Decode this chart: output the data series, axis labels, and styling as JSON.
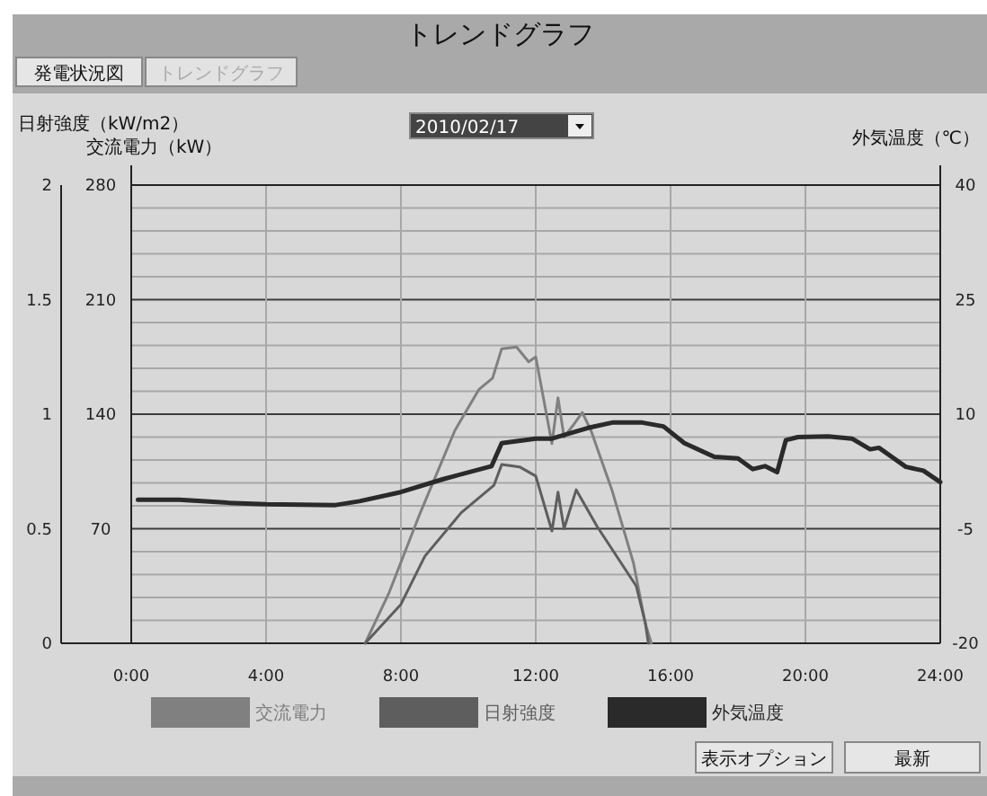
{
  "chart_data": {
    "type": "line",
    "title": "トレンドグラフ",
    "ylabel": "交流電力（kW）",
    "y2label": "外気温度（℃）",
    "y3label": "日射強度（kW/m2）",
    "xlim": [
      0,
      24
    ],
    "xticks": [
      {
        "value": 0,
        "label": "0:00"
      },
      {
        "value": 4,
        "label": "4:00"
      },
      {
        "value": 8,
        "label": "8:00"
      },
      {
        "value": 12,
        "label": "12:00"
      },
      {
        "value": 16,
        "label": "16:00"
      },
      {
        "value": 20,
        "label": "20:00"
      },
      {
        "value": 24,
        "label": "24:00"
      }
    ],
    "ylim": [
      0,
      280
    ],
    "yticks": [
      {
        "value": 0,
        "label": null
      },
      70,
      140,
      210,
      280
    ],
    "y2lim": [
      -20,
      40
    ],
    "y2ticks": [
      -20,
      -5,
      10,
      25,
      40
    ],
    "y3lim": [
      0,
      2
    ],
    "y3ticks": [
      0,
      0.5,
      1,
      1.5,
      2
    ],
    "grid": true,
    "legend": "bottom",
    "marker": "none",
    "line_style": "solid",
    "annotations": [
      "発電状況図",
      "トレンドグラフ",
      "2010/02/17",
      "表示オプション",
      "最新"
    ],
    "series": [
      {
        "name": "交流電力",
        "color": "#808080",
        "x": [
          6.94,
          7.65,
          8.54,
          9.6,
          10.31,
          10.72,
          10.99,
          11.43,
          11.79,
          12.0,
          12.48,
          12.66,
          12.84,
          13.1,
          13.38,
          13.64,
          14.27,
          14.9,
          15.25,
          15.43
        ],
        "values": [
          0,
          31,
          78,
          130,
          155,
          162,
          180,
          181,
          172,
          175,
          122,
          150,
          126,
          133,
          141,
          130,
          93,
          49,
          12,
          0
        ]
      },
      {
        "name": "日射強度",
        "axis": "y3",
        "color": "#5e5e5e",
        "x": [
          6.94,
          8.0,
          8.71,
          9.79,
          10.76,
          10.99,
          11.52,
          12.0,
          12.48,
          12.66,
          12.84,
          13.2,
          13.82,
          14.98,
          15.25,
          15.34
        ],
        "values": [
          0,
          0.17,
          0.38,
          0.57,
          0.69,
          0.78,
          0.77,
          0.73,
          0.49,
          0.66,
          0.5,
          0.67,
          0.51,
          0.25,
          0.09,
          0
        ]
      },
      {
        "name": "外気温度",
        "axis": "y2",
        "color": "#2a2a2a",
        "x": [
          0.2,
          1.43,
          2.86,
          4.0,
          6.06,
          6.77,
          8.0,
          9.26,
          10.69,
          10.99,
          12.0,
          12.48,
          13.55,
          14.27,
          15.16,
          15.79,
          16.41,
          17.3,
          18.0,
          18.44,
          18.8,
          19.16,
          19.42,
          19.78,
          20.67,
          21.38,
          21.92,
          22.18,
          22.98,
          23.5,
          24.0
        ],
        "values": [
          -1.2,
          -1.2,
          -1.6,
          -1.8,
          -1.9,
          -1.4,
          -0.2,
          1.5,
          3.2,
          6.2,
          6.8,
          6.8,
          8.2,
          8.9,
          8.9,
          8.4,
          6.2,
          4.4,
          4.2,
          2.8,
          3.2,
          2.4,
          6.6,
          7.0,
          7.1,
          6.8,
          5.4,
          5.6,
          3.1,
          2.6,
          1.1
        ]
      }
    ]
  }
}
